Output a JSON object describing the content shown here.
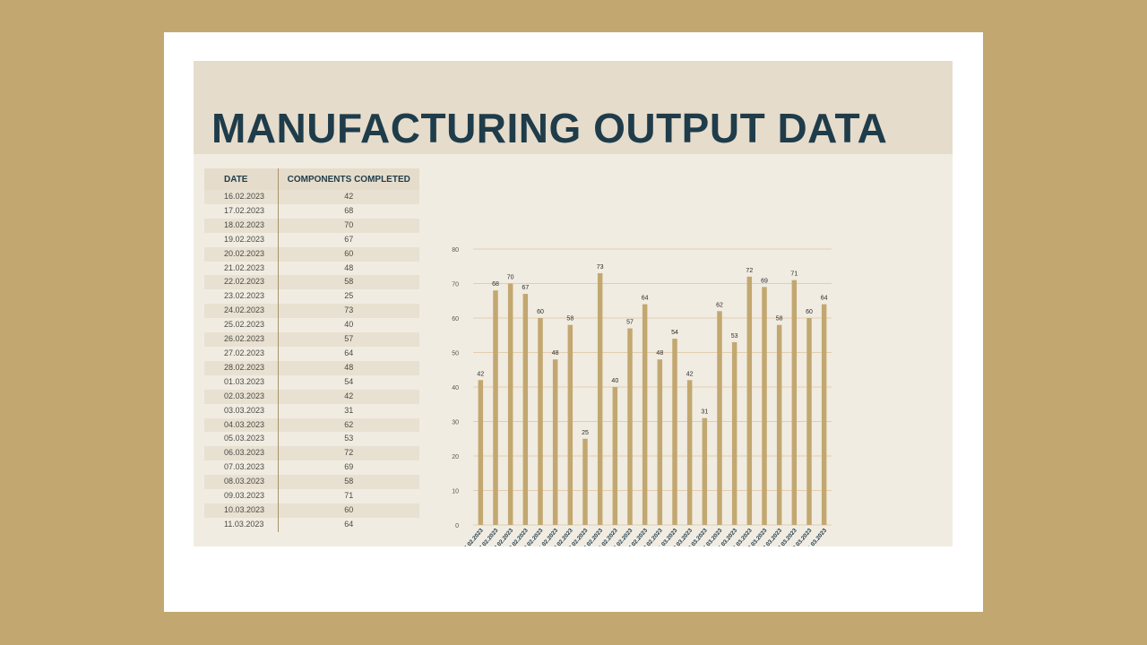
{
  "title": "MANUFACTURING OUTPUT DATA",
  "table": {
    "headers": [
      "DATE",
      "COMPONENTS COMPLETED"
    ],
    "rows": [
      [
        "16.02.2023",
        "42"
      ],
      [
        "17.02.2023",
        "68"
      ],
      [
        "18.02.2023",
        "70"
      ],
      [
        "19.02.2023",
        "67"
      ],
      [
        "20.02.2023",
        "60"
      ],
      [
        "21.02.2023",
        "48"
      ],
      [
        "22.02.2023",
        "58"
      ],
      [
        "23.02.2023",
        "25"
      ],
      [
        "24.02.2023",
        "73"
      ],
      [
        "25.02.2023",
        "40"
      ],
      [
        "26.02.2023",
        "57"
      ],
      [
        "27.02.2023",
        "64"
      ],
      [
        "28.02.2023",
        "48"
      ],
      [
        "01.03.2023",
        "54"
      ],
      [
        "02.03.2023",
        "42"
      ],
      [
        "03.03.2023",
        "31"
      ],
      [
        "04.03.2023",
        "62"
      ],
      [
        "05.03.2023",
        "53"
      ],
      [
        "06.03.2023",
        "72"
      ],
      [
        "07.03.2023",
        "69"
      ],
      [
        "08.03.2023",
        "58"
      ],
      [
        "09.03.2023",
        "71"
      ],
      [
        "10.03.2023",
        "60"
      ],
      [
        "11.03.2023",
        "64"
      ]
    ]
  },
  "colors": {
    "background": "#c2a870",
    "bar": "#c2a870",
    "title": "#1f3c4a",
    "gridline": "#e3ceb0"
  },
  "chart_data": {
    "type": "bar",
    "categories": [
      "16.02.2023",
      "17.02.2023",
      "18.02.2023",
      "19.02.2023",
      "20.02.2023",
      "21.02.2023",
      "22.02.2023",
      "23.02.2023",
      "24.02.2023",
      "25.02.2023",
      "26.02.2023",
      "27.02.2023",
      "28.02.2023",
      "01.03.2023",
      "02.03.2023",
      "03.03.2023",
      "04.03.2023",
      "05.03.2023",
      "06.03.2023",
      "07.03.2023",
      "08.03.2023",
      "09.03.2023",
      "10.03.2023",
      "11.03.2023"
    ],
    "values": [
      42,
      68,
      70,
      67,
      60,
      48,
      58,
      25,
      73,
      40,
      57,
      64,
      48,
      54,
      42,
      31,
      62,
      53,
      72,
      69,
      58,
      71,
      60,
      64
    ],
    "ylim": [
      0,
      80
    ],
    "yticks": [
      0,
      10,
      20,
      30,
      40,
      50,
      60,
      70,
      80
    ],
    "data_labels": true,
    "grid": true,
    "legend": "none"
  }
}
